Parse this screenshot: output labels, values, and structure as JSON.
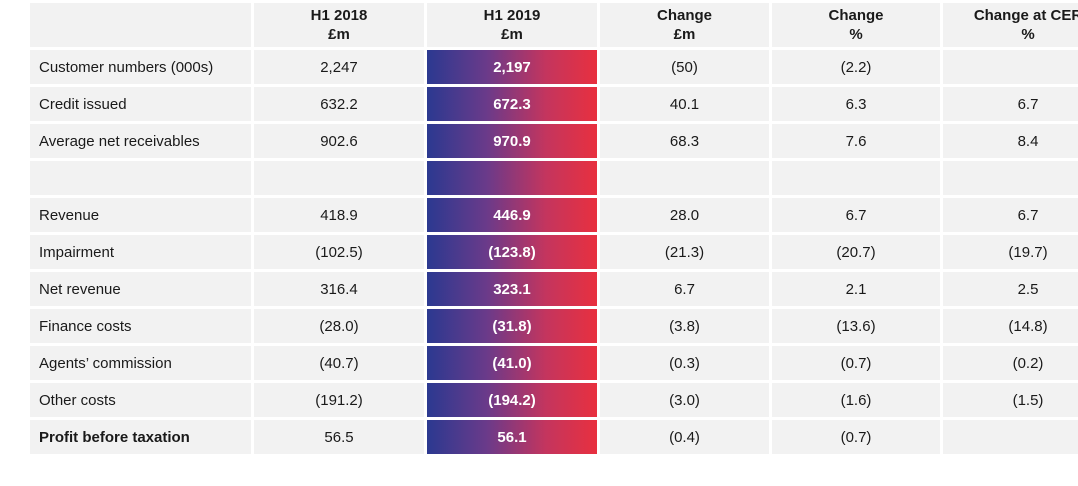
{
  "header": {
    "col0": [
      "",
      ""
    ],
    "col1": [
      "H1 2018",
      "£m"
    ],
    "col2": [
      "H1 2019",
      "£m"
    ],
    "col3": [
      "Change",
      "£m"
    ],
    "col4": [
      "Change",
      "%"
    ],
    "col5": [
      "Change at CER",
      "%"
    ]
  },
  "rows": [
    {
      "label": "Customer numbers (000s)",
      "h1_2018": "2,247",
      "h1_2019": "2,197",
      "change_m": "(50)",
      "change_pct": "(2.2)",
      "change_cer": ""
    },
    {
      "label": "Credit issued",
      "h1_2018": "632.2",
      "h1_2019": "672.3",
      "change_m": "40.1",
      "change_pct": "6.3",
      "change_cer": "6.7"
    },
    {
      "label": "Average net receivables",
      "h1_2018": "902.6",
      "h1_2019": "970.9",
      "change_m": "68.3",
      "change_pct": "7.6",
      "change_cer": "8.4"
    },
    {
      "label": "",
      "h1_2018": "",
      "h1_2019": "",
      "change_m": "",
      "change_pct": "",
      "change_cer": ""
    },
    {
      "label": "Revenue",
      "h1_2018": "418.9",
      "h1_2019": "446.9",
      "change_m": "28.0",
      "change_pct": "6.7",
      "change_cer": "6.7"
    },
    {
      "label": "Impairment",
      "h1_2018": "(102.5)",
      "h1_2019": "(123.8)",
      "change_m": "(21.3)",
      "change_pct": "(20.7)",
      "change_cer": "(19.7)"
    },
    {
      "label": "Net revenue",
      "h1_2018": "316.4",
      "h1_2019": "323.1",
      "change_m": "6.7",
      "change_pct": "2.1",
      "change_cer": "2.5"
    },
    {
      "label": "Finance costs",
      "h1_2018": "(28.0)",
      "h1_2019": "(31.8)",
      "change_m": "(3.8)",
      "change_pct": "(13.6)",
      "change_cer": "(14.8)"
    },
    {
      "label": "Agents’ commission",
      "h1_2018": "(40.7)",
      "h1_2019": "(41.0)",
      "change_m": "(0.3)",
      "change_pct": "(0.7)",
      "change_cer": "(0.2)"
    },
    {
      "label": "Other costs",
      "h1_2018": "(191.2)",
      "h1_2019": "(194.2)",
      "change_m": "(3.0)",
      "change_pct": "(1.6)",
      "change_cer": "(1.5)"
    },
    {
      "label": "Profit before taxation",
      "h1_2018": "56.5",
      "h1_2019": "56.1",
      "change_m": "(0.4)",
      "change_pct": "(0.7)",
      "change_cer": ""
    }
  ],
  "style": {
    "highlight_gradient_start": "#2b3990",
    "highlight_gradient_end": "#e8303f",
    "cell_background": "#f2f2f2"
  }
}
